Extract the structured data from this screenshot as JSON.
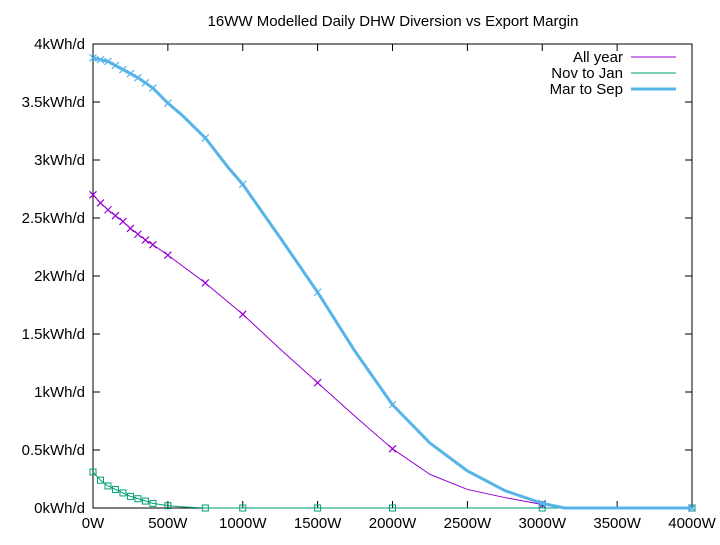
{
  "chart_data": {
    "type": "line",
    "title": "16WW Modelled Daily DHW Diversion vs Export Margin",
    "xlabel": "",
    "ylabel": "",
    "xlim": [
      0,
      4000
    ],
    "ylim": [
      0,
      4
    ],
    "x_ticks": [
      {
        "value": 0,
        "label": "0W"
      },
      {
        "value": 500,
        "label": "500W"
      },
      {
        "value": 1000,
        "label": "1000W"
      },
      {
        "value": 1500,
        "label": "1500W"
      },
      {
        "value": 2000,
        "label": "2000W"
      },
      {
        "value": 2500,
        "label": "2500W"
      },
      {
        "value": 3000,
        "label": "3000W"
      },
      {
        "value": 3500,
        "label": "3500W"
      },
      {
        "value": 4000,
        "label": "4000W"
      }
    ],
    "y_ticks": [
      {
        "value": 0,
        "label": "0kWh/d"
      },
      {
        "value": 0.5,
        "label": "0.5kWh/d"
      },
      {
        "value": 1,
        "label": "1kWh/d"
      },
      {
        "value": 1.5,
        "label": "1.5kWh/d"
      },
      {
        "value": 2,
        "label": "2kWh/d"
      },
      {
        "value": 2.5,
        "label": "2.5kWh/d"
      },
      {
        "value": 3,
        "label": "3kWh/d"
      },
      {
        "value": 3.5,
        "label": "3.5kWh/d"
      },
      {
        "value": 4,
        "label": "4kWh/d"
      }
    ],
    "grid": false,
    "legend_position": "top-right",
    "series": [
      {
        "name": "All year",
        "color": "#9400d3",
        "line_weight": "thin",
        "marker": "x",
        "points": [
          [
            0,
            2.7
          ],
          [
            50,
            2.63
          ],
          [
            100,
            2.57
          ],
          [
            150,
            2.52
          ],
          [
            200,
            2.47
          ],
          [
            250,
            2.41
          ],
          [
            300,
            2.36
          ],
          [
            350,
            2.31
          ],
          [
            400,
            2.27
          ],
          [
            500,
            2.18
          ],
          [
            750,
            1.94
          ],
          [
            1000,
            1.67
          ],
          [
            1250,
            1.37
          ],
          [
            1500,
            1.08
          ],
          [
            1750,
            0.79
          ],
          [
            2000,
            0.51
          ],
          [
            2250,
            0.29
          ],
          [
            2500,
            0.16
          ],
          [
            2750,
            0.09
          ],
          [
            3000,
            0.03
          ],
          [
            3150,
            0.0
          ],
          [
            4000,
            0.0
          ]
        ],
        "marker_x": [
          0,
          50,
          100,
          150,
          200,
          250,
          300,
          350,
          400,
          500,
          750,
          1000,
          1500,
          2000,
          3000,
          4000
        ]
      },
      {
        "name": "Nov to Jan",
        "color": "#009e73",
        "line_weight": "thin",
        "marker": "open-square",
        "points": [
          [
            0,
            0.31
          ],
          [
            50,
            0.24
          ],
          [
            100,
            0.19
          ],
          [
            150,
            0.16
          ],
          [
            200,
            0.13
          ],
          [
            250,
            0.1
          ],
          [
            300,
            0.08
          ],
          [
            350,
            0.06
          ],
          [
            400,
            0.04
          ],
          [
            500,
            0.02
          ],
          [
            600,
            0.01
          ],
          [
            750,
            0.0
          ],
          [
            1000,
            0.0
          ],
          [
            1500,
            0.0
          ],
          [
            2000,
            0.0
          ],
          [
            3000,
            0.0
          ],
          [
            4000,
            0.0
          ]
        ],
        "marker_x": [
          0,
          50,
          100,
          150,
          200,
          250,
          300,
          350,
          400,
          500,
          750,
          1000,
          1500,
          2000,
          3000,
          4000
        ]
      },
      {
        "name": "Mar to Sep",
        "color": "#56b4e9",
        "line_weight": "thick",
        "marker": "x",
        "points": [
          [
            0,
            3.88
          ],
          [
            100,
            3.85
          ],
          [
            200,
            3.78
          ],
          [
            300,
            3.71
          ],
          [
            400,
            3.62
          ],
          [
            500,
            3.49
          ],
          [
            600,
            3.38
          ],
          [
            750,
            3.19
          ],
          [
            900,
            2.94
          ],
          [
            1000,
            2.79
          ],
          [
            1250,
            2.33
          ],
          [
            1500,
            1.86
          ],
          [
            1750,
            1.35
          ],
          [
            2000,
            0.89
          ],
          [
            2250,
            0.56
          ],
          [
            2500,
            0.32
          ],
          [
            2750,
            0.15
          ],
          [
            3000,
            0.04
          ],
          [
            3150,
            0.0
          ],
          [
            4000,
            0.0
          ]
        ],
        "marker_x": [
          0,
          50,
          100,
          150,
          200,
          250,
          300,
          350,
          400,
          500,
          750,
          1000,
          1500,
          2000,
          3000,
          4000
        ]
      }
    ]
  }
}
